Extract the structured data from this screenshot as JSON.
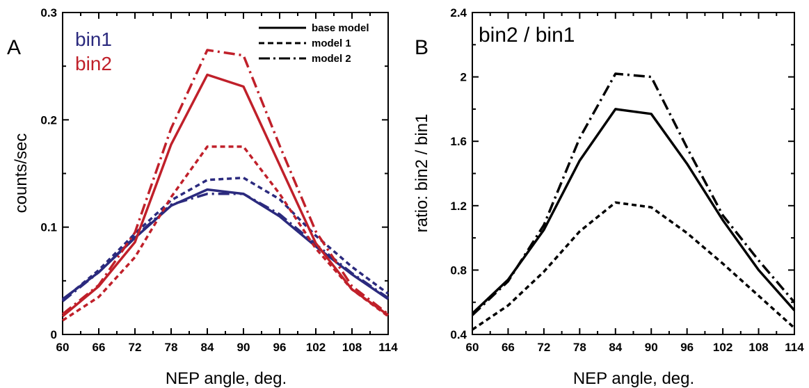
{
  "chart_data": [
    {
      "type": "line",
      "panel": "A",
      "xlabel": "NEP angle, deg.",
      "ylabel": "counts/sec",
      "x": [
        60,
        66,
        72,
        78,
        84,
        90,
        96,
        102,
        108,
        114
      ],
      "xticks": [
        "60",
        "66",
        "72",
        "78",
        "84",
        "90",
        "96",
        "102",
        "108",
        "114"
      ],
      "xlim": [
        60,
        114
      ],
      "ylim": [
        0,
        0.3
      ],
      "yticks": [
        "0",
        "0.1",
        "0.2",
        "0.3"
      ],
      "grid": false,
      "group_labels": [
        {
          "text": "bin1",
          "color": "#2b2a7e"
        },
        {
          "text": "bin2",
          "color": "#c0202a"
        }
      ],
      "legend": {
        "position": "top-right",
        "entries": [
          {
            "label": "base model",
            "style": "solid"
          },
          {
            "label": "model 1",
            "style": "dashed"
          },
          {
            "label": "model 2",
            "style": "dashdot"
          }
        ]
      },
      "series": [
        {
          "group": "bin1",
          "style": "solid",
          "color": "#2b2a7e",
          "values": [
            0.033,
            0.058,
            0.09,
            0.12,
            0.135,
            0.131,
            0.11,
            0.082,
            0.056,
            0.033
          ]
        },
        {
          "group": "bin1",
          "style": "dashed",
          "color": "#2b2a7e",
          "values": [
            0.032,
            0.06,
            0.094,
            0.125,
            0.144,
            0.146,
            0.126,
            0.092,
            0.063,
            0.038
          ]
        },
        {
          "group": "bin1",
          "style": "dashdot",
          "color": "#2b2a7e",
          "values": [
            0.031,
            0.058,
            0.091,
            0.121,
            0.131,
            0.131,
            0.112,
            0.084,
            0.057,
            0.034
          ]
        },
        {
          "group": "bin2",
          "style": "solid",
          "color": "#c0202a",
          "values": [
            0.017,
            0.045,
            0.086,
            0.177,
            0.242,
            0.231,
            0.158,
            0.085,
            0.042,
            0.018
          ]
        },
        {
          "group": "bin2",
          "style": "dashed",
          "color": "#c0202a",
          "values": [
            0.013,
            0.035,
            0.072,
            0.128,
            0.175,
            0.175,
            0.131,
            0.08,
            0.042,
            0.017
          ]
        },
        {
          "group": "bin2",
          "style": "dashdot",
          "color": "#c0202a",
          "values": [
            0.019,
            0.046,
            0.095,
            0.192,
            0.265,
            0.26,
            0.176,
            0.096,
            0.045,
            0.019
          ]
        }
      ]
    },
    {
      "type": "line",
      "panel": "B",
      "title": "bin2 / bin1",
      "xlabel": "NEP angle, deg.",
      "ylabel": "ratio: bin2 / bin1",
      "x": [
        60,
        66,
        72,
        78,
        84,
        90,
        96,
        102,
        108,
        114
      ],
      "xticks": [
        "60",
        "66",
        "72",
        "78",
        "84",
        "90",
        "96",
        "102",
        "108",
        "114"
      ],
      "xlim": [
        60,
        114
      ],
      "ylim": [
        0.4,
        2.4
      ],
      "yticks": [
        "0.4",
        "0.8",
        "1.2",
        "1.6",
        "2",
        "2.4"
      ],
      "grid": false,
      "series": [
        {
          "style": "solid",
          "color": "#000000",
          "values": [
            0.53,
            0.74,
            1.05,
            1.48,
            1.8,
            1.77,
            1.46,
            1.11,
            0.8,
            0.55
          ]
        },
        {
          "style": "dashed",
          "color": "#000000",
          "values": [
            0.43,
            0.58,
            0.79,
            1.04,
            1.22,
            1.19,
            1.03,
            0.84,
            0.64,
            0.44
          ]
        },
        {
          "style": "dashdot",
          "color": "#000000",
          "values": [
            0.52,
            0.73,
            1.08,
            1.62,
            2.02,
            2.0,
            1.56,
            1.14,
            0.86,
            0.6
          ]
        }
      ]
    }
  ]
}
